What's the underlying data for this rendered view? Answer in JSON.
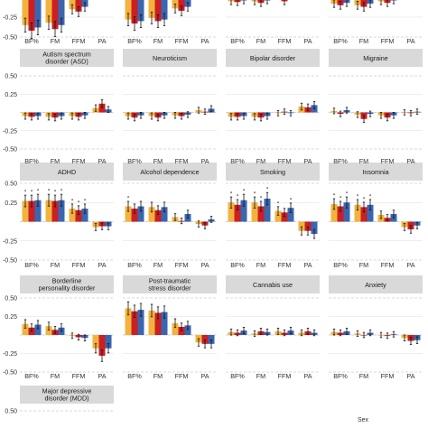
{
  "colors": {
    "c1": "#f2b33d",
    "c2": "#cc1f24",
    "c3": "#3a66b0"
  },
  "legend_title": "Sex",
  "chart_data": {
    "type": "bar",
    "categories": [
      "BF%",
      "FM",
      "FFM",
      "PA"
    ],
    "yticks": [
      0.5,
      0.25,
      0,
      -0.25,
      -0.5
    ],
    "ytick_labels": [
      "0.50",
      "0.25",
      "",
      "-0.25",
      "-0.50"
    ],
    "ylim": [
      -0.5,
      0.5
    ],
    "panels": [
      {
        "label": "",
        "values": [
          [
            -0.35,
            -0.42,
            -0.38
          ],
          [
            -0.32,
            -0.4,
            -0.35
          ],
          [
            -0.15,
            -0.18,
            -0.12
          ],
          [
            0.02,
            0.05,
            -0.02
          ]
        ],
        "stars": []
      },
      {
        "label": "",
        "values": [
          [
            -0.28,
            -0.33,
            -0.3
          ],
          [
            -0.26,
            -0.3,
            -0.28
          ],
          [
            -0.14,
            -0.17,
            -0.12
          ],
          [
            0.02,
            0.03,
            0.01
          ]
        ],
        "stars": []
      },
      {
        "label": "",
        "values": [
          [
            -0.05,
            -0.06,
            -0.04
          ],
          [
            -0.05,
            -0.07,
            -0.04
          ],
          [
            -0.03,
            -0.05,
            -0.02
          ],
          [
            0.02,
            0.03,
            0.03
          ]
        ],
        "stars": []
      },
      {
        "label": "",
        "values": [
          [
            -0.08,
            -0.1,
            -0.07
          ],
          [
            -0.1,
            -0.12,
            -0.08
          ],
          [
            -0.05,
            -0.07,
            -0.04
          ],
          [
            0.01,
            0.02,
            0.01
          ]
        ],
        "stars": []
      },
      {
        "label": "Autism spectrum disorder (ASD)",
        "values": [
          [
            -0.05,
            -0.06,
            -0.05
          ],
          [
            -0.06,
            -0.07,
            -0.05
          ],
          [
            -0.05,
            -0.06,
            -0.04
          ],
          [
            0.06,
            0.12,
            0.04
          ]
        ],
        "stars": []
      },
      {
        "label": "Neuroticism",
        "values": [
          [
            -0.05,
            -0.07,
            -0.04
          ],
          [
            -0.05,
            -0.07,
            -0.04
          ],
          [
            -0.04,
            -0.05,
            -0.03
          ],
          [
            0.03,
            0.01,
            0.05
          ]
        ],
        "stars": []
      },
      {
        "label": "Bipolar disorder",
        "values": [
          [
            -0.06,
            -0.06,
            -0.05
          ],
          [
            -0.06,
            -0.07,
            -0.05
          ],
          [
            -0.01,
            0.01,
            -0.01
          ],
          [
            0.08,
            0.07,
            0.1
          ]
        ],
        "stars": []
      },
      {
        "label": "Migraine",
        "values": [
          [
            0.02,
            -0.02,
            0.03
          ],
          [
            -0.03,
            -0.09,
            -0.02
          ],
          [
            -0.04,
            -0.07,
            -0.04
          ],
          [
            0.0,
            -0.01,
            0.01
          ]
        ],
        "stars": []
      },
      {
        "label": "ADHD",
        "values": [
          [
            0.27,
            0.27,
            0.28
          ],
          [
            0.28,
            0.27,
            0.28
          ],
          [
            0.17,
            0.15,
            0.17
          ],
          [
            -0.07,
            -0.06,
            -0.06
          ]
        ],
        "stars": [
          [
            1,
            1,
            1
          ],
          [
            1,
            1,
            1
          ],
          [
            1,
            1,
            1
          ],
          [
            0,
            0,
            0
          ]
        ]
      },
      {
        "label": "Alcohol dependence",
        "values": [
          [
            0.2,
            0.17,
            0.2
          ],
          [
            0.19,
            0.15,
            0.19
          ],
          [
            0.06,
            0.01,
            0.1
          ],
          [
            -0.03,
            -0.05,
            0.03
          ]
        ],
        "stars": [
          [
            1,
            0,
            0
          ],
          [
            0,
            0,
            0
          ],
          [
            0,
            0,
            0
          ],
          [
            0,
            0,
            0
          ]
        ]
      },
      {
        "label": "Smoking",
        "values": [
          [
            0.25,
            0.22,
            0.28
          ],
          [
            0.25,
            0.2,
            0.3
          ],
          [
            0.14,
            0.12,
            0.18
          ],
          [
            -0.12,
            -0.12,
            -0.16
          ]
        ],
        "stars": [
          [
            1,
            1,
            1
          ],
          [
            1,
            1,
            1
          ],
          [
            1,
            0,
            1
          ],
          [
            0,
            0,
            0
          ]
        ]
      },
      {
        "label": "Insomnia",
        "values": [
          [
            0.23,
            0.2,
            0.25
          ],
          [
            0.22,
            0.19,
            0.22
          ],
          [
            0.09,
            0.05,
            0.1
          ],
          [
            -0.07,
            -0.1,
            -0.05
          ]
        ],
        "stars": [
          [
            1,
            1,
            1
          ],
          [
            1,
            1,
            1
          ],
          [
            0,
            0,
            0
          ],
          [
            0,
            0,
            0
          ]
        ]
      },
      {
        "label": "Borderline personality disorder",
        "values": [
          [
            0.15,
            0.1,
            0.14
          ],
          [
            0.12,
            0.07,
            0.1
          ],
          [
            -0.01,
            -0.03,
            -0.04
          ],
          [
            -0.18,
            -0.28,
            -0.18
          ]
        ],
        "stars": []
      },
      {
        "label": "Post-traumatic stress disorder",
        "values": [
          [
            0.36,
            0.32,
            0.34
          ],
          [
            0.33,
            0.3,
            0.31
          ],
          [
            0.16,
            0.11,
            0.13
          ],
          [
            -0.1,
            -0.12,
            -0.12
          ]
        ],
        "stars": []
      },
      {
        "label": "Cannabis use",
        "values": [
          [
            0.04,
            0.03,
            0.06
          ],
          [
            0.02,
            0.05,
            0.04
          ],
          [
            0.05,
            0.03,
            0.06
          ],
          [
            0.03,
            0.05,
            0.03
          ]
        ],
        "stars": []
      },
      {
        "label": "Anxiety",
        "values": [
          [
            0.04,
            0.03,
            0.05
          ],
          [
            0.02,
            0.0,
            0.03
          ],
          [
            0.0,
            -0.01,
            0.01
          ],
          [
            -0.04,
            -0.08,
            -0.07
          ]
        ],
        "stars": []
      },
      {
        "label": "Major depressive disorder (MDD)",
        "values": [],
        "stars": []
      }
    ]
  }
}
